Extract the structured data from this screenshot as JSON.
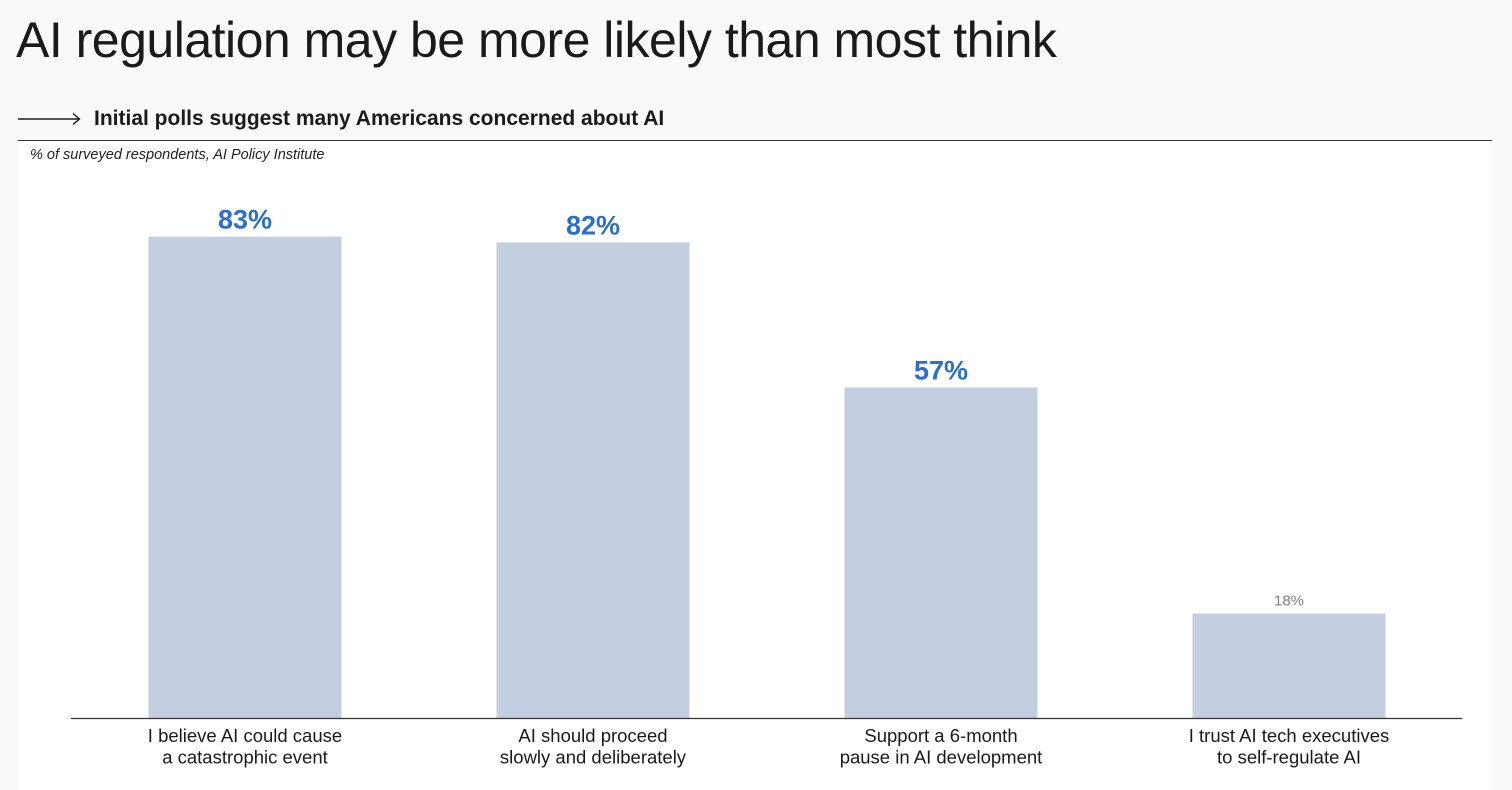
{
  "header": {
    "title": "AI regulation may be more likely than most think",
    "subtitle": "Initial polls suggest many Americans concerned about AI",
    "source": "% of surveyed respondents, AI Policy Institute"
  },
  "icons": {
    "subtitle_arrow": "right-arrow-icon"
  },
  "colors": {
    "bar": "#c3cfe0",
    "highlight_label": "#2a6fcf",
    "muted_label": "#808080",
    "axis": "#333333"
  },
  "chart_data": {
    "type": "bar",
    "title": "Initial polls suggest many Americans concerned about AI",
    "xlabel": "",
    "ylabel": "",
    "ylim": [
      0,
      100
    ],
    "grid": false,
    "categories": [
      [
        "I believe AI could cause",
        "a catastrophic event"
      ],
      [
        "AI should proceed",
        "slowly and deliberately"
      ],
      [
        "Support a 6-month",
        "pause in AI development"
      ],
      [
        "I trust AI tech executives",
        "to self-regulate AI"
      ]
    ],
    "values": [
      83,
      82,
      57,
      18
    ],
    "value_labels": [
      "83%",
      "82%",
      "57%",
      "18%"
    ],
    "highlighted": [
      true,
      true,
      true,
      false
    ]
  }
}
